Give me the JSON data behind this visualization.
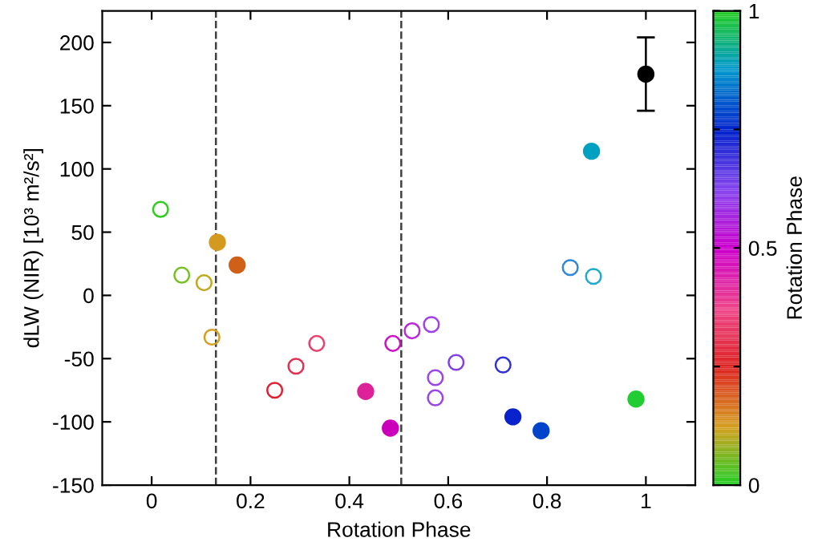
{
  "chart_data": {
    "type": "scatter",
    "xlabel": "Rotation Phase",
    "ylabel": "dLW (NIR) [10³ m²/s²]",
    "clabel": "Rotation Phase",
    "xlim": [
      -0.1,
      1.1
    ],
    "ylim": [
      -150,
      225
    ],
    "xticks": [
      0,
      0.2,
      0.4,
      0.6,
      0.8,
      1
    ],
    "yticks": [
      -150,
      -100,
      -50,
      0,
      50,
      100,
      150,
      200
    ],
    "clim": [
      0,
      1
    ],
    "cticks": [
      0,
      {
        "value": 0.25,
        "label": null
      },
      0.5,
      {
        "value": 0.75,
        "label": null
      },
      1
    ],
    "grid": false,
    "legend": false,
    "ref_lines": [
      {
        "axis": "x",
        "value": 0.13,
        "line_style": "dashed",
        "color": "#404040"
      },
      {
        "axis": "x",
        "value": 0.505,
        "line_style": "dashed",
        "color": "#404040"
      }
    ],
    "series": [
      {
        "marker": "open circle",
        "x": [
          0.018,
          0.061,
          0.106,
          0.122,
          0.249,
          0.292,
          0.334,
          0.488,
          0.527,
          0.566,
          0.574,
          0.574,
          0.616,
          0.711,
          0.847,
          0.894
        ],
        "values": [
          68,
          16,
          10,
          -33,
          -75,
          -56,
          -38,
          -38,
          -28,
          -23,
          -65,
          -81,
          -53,
          -55,
          22,
          15
        ],
        "colors": [
          "#33cc22",
          "#77c022",
          "#c0a820",
          "#d4a020",
          "#dd2233",
          "#e43050",
          "#e84070",
          "#d010c8",
          "#b82ad8",
          "#a040e8",
          "#9a44ea",
          "#9a44ea",
          "#8040e8",
          "#3030d8",
          "#3088dd",
          "#20aacc"
        ]
      },
      {
        "marker": "circle",
        "x": [
          0.133,
          0.173,
          0.433,
          0.483,
          0.731,
          0.788,
          0.89,
          0.98
        ],
        "values": [
          42,
          24,
          -76,
          -105,
          -96,
          -107,
          114,
          -82
        ],
        "colors": [
          "#d49a20",
          "#d06018",
          "#dd2299",
          "#cc00bb",
          "#0a22cc",
          "#0044cc",
          "#00a0c0",
          "#22cc33"
        ]
      },
      {
        "marker": "circle",
        "color": "#000000",
        "x": [
          1.0
        ],
        "values": [
          175
        ],
        "errors": [
          [
            146,
            204
          ]
        ]
      }
    ]
  }
}
